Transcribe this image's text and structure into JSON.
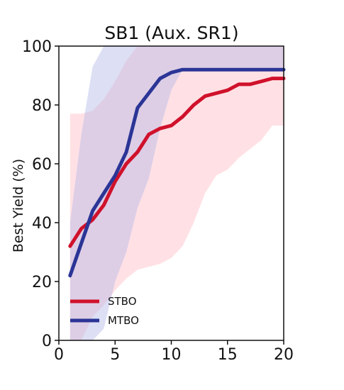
{
  "chart_data": {
    "type": "line",
    "title": "SB1 (Aux. SR1)",
    "xlabel": "",
    "ylabel": "Best Yield (%)",
    "xlim": [
      0,
      20
    ],
    "ylim": [
      0,
      100
    ],
    "x_ticks": [
      0,
      5,
      10,
      15,
      20
    ],
    "y_ticks": [
      0,
      20,
      40,
      60,
      80,
      100
    ],
    "legend_position": "lower-left",
    "x": [
      1,
      2,
      3,
      4,
      5,
      6,
      7,
      8,
      9,
      10,
      11,
      12,
      13,
      14,
      15,
      16,
      17,
      18,
      19,
      20
    ],
    "series": [
      {
        "name": "STBO",
        "color": "#d0112b",
        "band_color": "#ffb3bf",
        "values": [
          32,
          38,
          41,
          46,
          54,
          60,
          64,
          70,
          72,
          73,
          76,
          80,
          83,
          84,
          85,
          87,
          87,
          88,
          89,
          89
        ],
        "lower": [
          0,
          0,
          8,
          12,
          17,
          21,
          24,
          25,
          26,
          28,
          32,
          40,
          50,
          56,
          58,
          62,
          65,
          68,
          73,
          73
        ],
        "upper": [
          77,
          77,
          78,
          82,
          88,
          95,
          100,
          100,
          100,
          100,
          100,
          100,
          100,
          100,
          100,
          100,
          100,
          100,
          100,
          100
        ]
      },
      {
        "name": "MTBO",
        "color": "#2b3596",
        "band_color": "#b3b9e6",
        "values": [
          22,
          33,
          44,
          50,
          56,
          64,
          79,
          84,
          89,
          91,
          92,
          92,
          92,
          92,
          92,
          92,
          92,
          92,
          92,
          92
        ],
        "lower": [
          0,
          0,
          0,
          4,
          20,
          30,
          45,
          55,
          72,
          85,
          92,
          92,
          92,
          92,
          92,
          92,
          92,
          92,
          92,
          92
        ],
        "upper": [
          40,
          70,
          93,
          100,
          100,
          100,
          100,
          100,
          100,
          100,
          100,
          100,
          100,
          100,
          100,
          100,
          100,
          100,
          100,
          100
        ]
      }
    ]
  }
}
